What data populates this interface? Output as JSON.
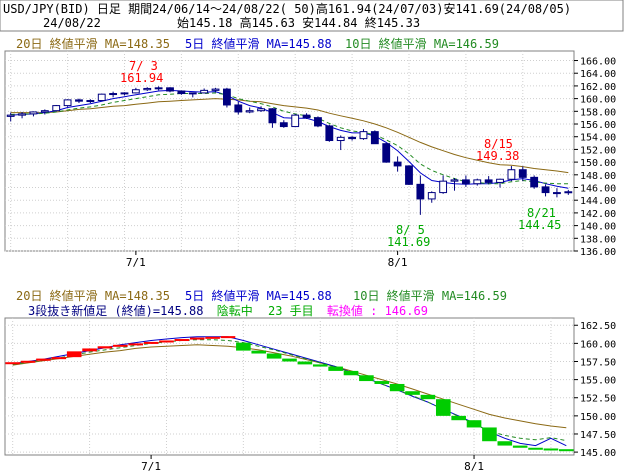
{
  "header": {
    "line1": "USD/JPY(BID) 日足 期間24/06/14～24/08/22( 50)高161.94(24/07/03)安141.69(24/08/05)",
    "date": "24/08/22",
    "ohlc": "始145.18 高145.63 安144.84 終145.33"
  },
  "legend": {
    "ma20": "20日 終値平滑 MA=148.35",
    "ma5": "5日 終値平滑 MA=145.88",
    "ma10": "10日 終値平滑 MA=146.59",
    "info_prefix": "3段抜き新値足 (終値)=145.88",
    "info_trend": "陰転中",
    "info_count": "23 手目",
    "info_reversal": "転換値 : 146.69"
  },
  "annotations": {
    "high_date": "7/ 3",
    "high_value": "161.94",
    "low_date": "8/ 5",
    "low_value": "141.69",
    "p815_date": "8/15",
    "p815_value": "149.38",
    "p821_date": "8/21",
    "p821_value": "144.45"
  },
  "colors": {
    "up_candle": "#000080",
    "down_candle": "#000080",
    "ma20": "#8b6914",
    "ma5": "#0000cc",
    "ma10": "#228b22",
    "shinne_up": "#ff0000",
    "shinne_down": "#00cc00",
    "grid": "#cfcfcf",
    "red_text": "#ff0000",
    "green_text": "#00aa00",
    "magenta_text": "#ff00ff"
  },
  "chart_data": [
    {
      "type": "candlestick",
      "title": "USD/JPY(BID) 日足",
      "x_ticks": [
        "7/1",
        "8/1"
      ],
      "y_ticks": [
        136,
        138,
        140,
        142,
        144,
        146,
        148,
        150,
        152,
        154,
        156,
        158,
        160,
        162,
        164,
        166
      ],
      "ylim": [
        136,
        167.5
      ],
      "grid": true,
      "dates": [
        "6/14",
        "6/17",
        "6/18",
        "6/19",
        "6/20",
        "6/21",
        "6/24",
        "6/25",
        "6/26",
        "6/27",
        "6/28",
        "7/1",
        "7/2",
        "7/3",
        "7/4",
        "7/5",
        "7/8",
        "7/9",
        "7/10",
        "7/11",
        "7/12",
        "7/15",
        "7/16",
        "7/17",
        "7/18",
        "7/19",
        "7/22",
        "7/23",
        "7/24",
        "7/25",
        "7/26",
        "7/29",
        "7/30",
        "7/31",
        "8/1",
        "8/2",
        "8/5",
        "8/6",
        "8/7",
        "8/8",
        "8/9",
        "8/12",
        "8/13",
        "8/14",
        "8/15",
        "8/16",
        "8/19",
        "8/20",
        "8/21",
        "8/22"
      ],
      "ohlc": [
        [
          157.2,
          157.8,
          156.4,
          157.4
        ],
        [
          157.4,
          157.9,
          156.9,
          157.6
        ],
        [
          157.6,
          158.0,
          157.2,
          157.9
        ],
        [
          157.9,
          158.3,
          157.5,
          158.1
        ],
        [
          158.1,
          159.0,
          158.0,
          158.9
        ],
        [
          158.9,
          159.9,
          158.7,
          159.8
        ],
        [
          159.8,
          160.0,
          159.3,
          159.6
        ],
        [
          159.6,
          159.9,
          159.3,
          159.7
        ],
        [
          159.7,
          160.8,
          159.6,
          160.7
        ],
        [
          160.7,
          161.1,
          160.2,
          160.8
        ],
        [
          160.8,
          161.0,
          160.5,
          160.9
        ],
        [
          160.9,
          161.7,
          160.8,
          161.4
        ],
        [
          161.4,
          161.8,
          161.2,
          161.6
        ],
        [
          161.6,
          161.94,
          161.3,
          161.7
        ],
        [
          161.7,
          161.8,
          161.0,
          161.2
        ],
        [
          161.2,
          161.3,
          160.6,
          160.8
        ],
        [
          160.8,
          160.9,
          160.2,
          160.9
        ],
        [
          160.9,
          161.6,
          160.8,
          161.3
        ],
        [
          161.3,
          161.7,
          161.0,
          161.5
        ],
        [
          161.5,
          161.7,
          158.6,
          159.0
        ],
        [
          159.0,
          159.5,
          157.5,
          157.9
        ],
        [
          157.9,
          158.6,
          157.7,
          158.1
        ],
        [
          158.1,
          158.8,
          157.9,
          158.4
        ],
        [
          158.4,
          158.5,
          155.4,
          156.2
        ],
        [
          156.2,
          156.6,
          155.4,
          155.6
        ],
        [
          155.6,
          157.6,
          155.5,
          157.4
        ],
        [
          157.4,
          157.7,
          156.8,
          157.0
        ],
        [
          157.0,
          157.2,
          155.5,
          155.7
        ],
        [
          155.7,
          155.9,
          153.2,
          153.4
        ],
        [
          153.4,
          154.2,
          151.9,
          153.9
        ],
        [
          153.9,
          154.1,
          153.4,
          153.7
        ],
        [
          153.7,
          155.2,
          153.5,
          154.8
        ],
        [
          154.8,
          155.0,
          152.9,
          152.9
        ],
        [
          152.9,
          153.0,
          149.9,
          150.0
        ],
        [
          150.0,
          150.9,
          148.5,
          149.4
        ],
        [
          149.4,
          149.5,
          146.4,
          146.5
        ],
        [
          146.5,
          147.9,
          141.69,
          144.2
        ],
        [
          144.2,
          145.4,
          143.6,
          145.2
        ],
        [
          145.2,
          147.9,
          145.0,
          147.0
        ],
        [
          147.0,
          147.5,
          145.5,
          147.2
        ],
        [
          147.2,
          147.9,
          146.1,
          146.6
        ],
        [
          146.6,
          147.4,
          146.3,
          147.2
        ],
        [
          147.2,
          147.8,
          146.5,
          146.8
        ],
        [
          146.8,
          147.4,
          146.0,
          147.3
        ],
        [
          147.3,
          149.38,
          147.0,
          148.8
        ],
        [
          148.8,
          149.3,
          147.0,
          147.6
        ],
        [
          147.6,
          147.9,
          145.8,
          146.1
        ],
        [
          146.1,
          146.5,
          144.6,
          145.2
        ],
        [
          145.2,
          145.9,
          144.45,
          145.2
        ],
        [
          145.18,
          145.63,
          144.84,
          145.33
        ]
      ],
      "series": [
        {
          "name": "20日 終値平滑 MA=148.35",
          "values": [
            157.8,
            157.8,
            157.8,
            157.8,
            157.9,
            158.1,
            158.3,
            158.4,
            158.6,
            158.8,
            158.9,
            159.1,
            159.3,
            159.5,
            159.6,
            159.7,
            159.8,
            159.9,
            160.0,
            159.9,
            159.8,
            159.6,
            159.5,
            159.2,
            158.9,
            158.7,
            158.5,
            158.2,
            157.7,
            157.3,
            156.9,
            156.5,
            156.0,
            155.4,
            154.7,
            153.9,
            153.1,
            152.4,
            151.8,
            151.2,
            150.7,
            150.3,
            149.9,
            149.6,
            149.5,
            149.3,
            149.0,
            148.8,
            148.6,
            148.35
          ]
        },
        {
          "name": "5日 終値平滑 MA=145.88",
          "values": [
            157.4,
            157.5,
            157.6,
            157.8,
            158.1,
            158.6,
            158.9,
            159.2,
            159.6,
            160.0,
            160.3,
            160.6,
            160.9,
            161.2,
            161.3,
            161.2,
            161.1,
            161.0,
            161.1,
            160.5,
            159.6,
            158.9,
            158.5,
            157.8,
            157.0,
            156.9,
            156.9,
            156.4,
            155.6,
            155.0,
            154.6,
            154.6,
            154.1,
            153.1,
            151.8,
            150.1,
            148.3,
            147.1,
            146.8,
            146.6,
            146.5,
            146.6,
            146.6,
            146.8,
            147.2,
            147.4,
            147.1,
            146.6,
            146.2,
            145.88
          ]
        },
        {
          "name": "10日 終値平滑 MA=146.59",
          "values": [
            157.5,
            157.6,
            157.6,
            157.7,
            157.9,
            158.2,
            158.5,
            158.7,
            159.0,
            159.4,
            159.7,
            160.0,
            160.3,
            160.6,
            160.7,
            160.8,
            160.8,
            160.8,
            160.9,
            160.6,
            160.0,
            159.6,
            159.2,
            158.7,
            158.0,
            157.6,
            157.3,
            156.9,
            156.1,
            155.4,
            154.9,
            154.7,
            154.3,
            153.5,
            152.6,
            151.3,
            149.7,
            148.7,
            148.0,
            147.4,
            146.9,
            146.8,
            146.6,
            146.6,
            146.9,
            147.1,
            146.9,
            146.7,
            146.6,
            146.59
          ]
        }
      ]
    },
    {
      "type": "bar",
      "title": "3段抜き新値足 (終値)=145.88",
      "x_ticks": [
        "7/1",
        "8/1"
      ],
      "y_ticks": [
        145.0,
        147.5,
        150.0,
        152.5,
        155.0,
        157.5,
        160.0,
        162.5
      ],
      "ylim": [
        144.6,
        163.5
      ],
      "grid": true,
      "bricks": [
        {
          "dir": "up",
          "open": 157.2,
          "close": 157.4
        },
        {
          "dir": "up",
          "open": 157.4,
          "close": 157.6
        },
        {
          "dir": "up",
          "open": 157.6,
          "close": 157.9
        },
        {
          "dir": "up",
          "open": 157.9,
          "close": 158.1
        },
        {
          "dir": "up",
          "open": 158.1,
          "close": 158.9
        },
        {
          "dir": "up",
          "open": 158.9,
          "close": 159.3
        },
        {
          "dir": "up",
          "open": 159.3,
          "close": 159.6
        },
        {
          "dir": "up",
          "open": 159.6,
          "close": 159.8
        },
        {
          "dir": "up",
          "open": 159.8,
          "close": 160.0
        },
        {
          "dir": "up",
          "open": 160.0,
          "close": 160.2
        },
        {
          "dir": "up",
          "open": 160.2,
          "close": 160.4
        },
        {
          "dir": "up",
          "open": 160.4,
          "close": 160.6
        },
        {
          "dir": "up",
          "open": 160.6,
          "close": 160.8
        },
        {
          "dir": "up",
          "open": 160.8,
          "close": 160.9
        },
        {
          "dir": "up",
          "open": 160.9,
          "close": 161.0
        },
        {
          "dir": "down",
          "open": 160.1,
          "close": 159.0
        },
        {
          "dir": "down",
          "open": 159.0,
          "close": 158.6
        },
        {
          "dir": "down",
          "open": 158.6,
          "close": 157.9
        },
        {
          "dir": "down",
          "open": 157.9,
          "close": 157.5
        },
        {
          "dir": "down",
          "open": 157.5,
          "close": 157.1
        },
        {
          "dir": "down",
          "open": 157.1,
          "close": 156.8
        },
        {
          "dir": "down",
          "open": 156.8,
          "close": 156.2
        },
        {
          "dir": "down",
          "open": 156.2,
          "close": 155.6
        },
        {
          "dir": "down",
          "open": 155.6,
          "close": 154.8
        },
        {
          "dir": "down",
          "open": 154.8,
          "close": 154.4
        },
        {
          "dir": "down",
          "open": 154.4,
          "close": 153.4
        },
        {
          "dir": "down",
          "open": 153.4,
          "close": 152.9
        },
        {
          "dir": "down",
          "open": 152.9,
          "close": 152.3
        },
        {
          "dir": "down",
          "open": 152.3,
          "close": 150.0
        },
        {
          "dir": "down",
          "open": 150.0,
          "close": 149.4
        },
        {
          "dir": "down",
          "open": 149.4,
          "close": 148.4
        },
        {
          "dir": "down",
          "open": 148.4,
          "close": 146.5
        },
        {
          "dir": "down",
          "open": 146.5,
          "close": 145.9
        },
        {
          "dir": "down",
          "open": 145.9,
          "close": 145.6
        },
        {
          "dir": "down",
          "open": 145.6,
          "close": 145.5
        },
        {
          "dir": "down",
          "open": 145.5,
          "close": 145.4
        },
        {
          "dir": "down",
          "open": 145.4,
          "close": 145.3
        }
      ],
      "series": [
        {
          "name": "20日 終値平滑 MA=148.35",
          "values": [
            157.0,
            157.3,
            157.6,
            157.9,
            158.2,
            158.5,
            158.8,
            159.0,
            159.3,
            159.5,
            159.6,
            159.7,
            159.8,
            159.7,
            159.6,
            159.4,
            159.1,
            158.7,
            158.3,
            157.8,
            157.3,
            156.8,
            156.2,
            155.6,
            155.0,
            154.4,
            153.7,
            153.0,
            152.3,
            151.6,
            150.9,
            150.2,
            149.7,
            149.3,
            148.9,
            148.6,
            148.35
          ]
        },
        {
          "name": "5日 終値平滑 MA=145.88",
          "values": [
            157.2,
            157.5,
            157.8,
            158.2,
            158.6,
            159.0,
            159.4,
            159.8,
            160.1,
            160.4,
            160.6,
            160.8,
            160.9,
            160.9,
            160.9,
            160.4,
            159.8,
            159.2,
            158.6,
            158.0,
            157.4,
            156.8,
            156.0,
            155.2,
            154.4,
            153.6,
            152.7,
            151.9,
            150.9,
            150.0,
            149.0,
            147.8,
            146.9,
            146.2,
            145.9,
            146.9,
            145.88
          ]
        },
        {
          "name": "10日 終値平滑 MA=146.59",
          "values": [
            157.1,
            157.4,
            157.7,
            158.0,
            158.4,
            158.8,
            159.1,
            159.4,
            159.7,
            160.0,
            160.2,
            160.4,
            160.5,
            160.5,
            160.4,
            160.1,
            159.6,
            159.1,
            158.5,
            157.9,
            157.3,
            156.7,
            156.0,
            155.2,
            154.4,
            153.6,
            152.8,
            151.9,
            150.9,
            149.9,
            148.9,
            147.9,
            147.3,
            146.9,
            146.7,
            147.0,
            146.59
          ]
        }
      ]
    }
  ]
}
